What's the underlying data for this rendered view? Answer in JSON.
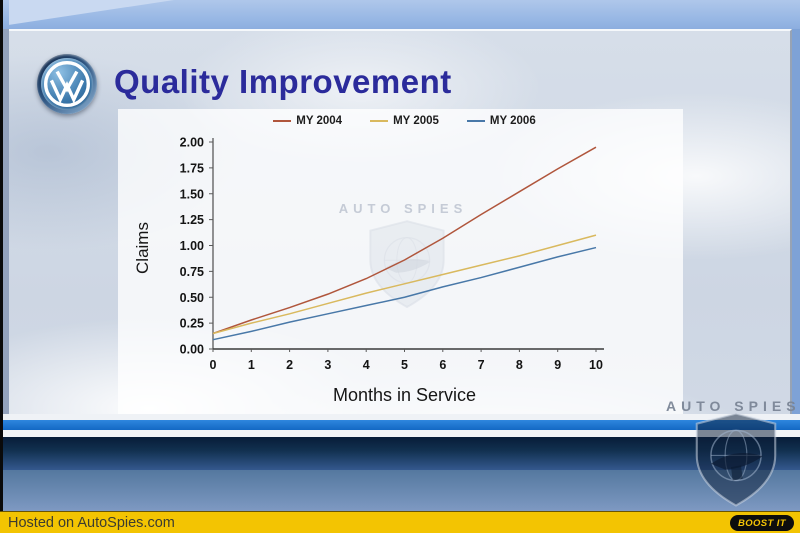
{
  "slide": {
    "title": "Quality Improvement",
    "logo": "vw-logo"
  },
  "watermark": {
    "text": "AUTO SPIES"
  },
  "footer": {
    "hosted_text": "Hosted on AutoSpies.com",
    "boost_label": "BOOST IT",
    "bar_color": "#F3C402"
  },
  "chart_data": {
    "type": "line",
    "title": "",
    "xlabel": "Months in Service",
    "ylabel": "Claims",
    "x": [
      0,
      1,
      2,
      3,
      4,
      5,
      6,
      7,
      8,
      9,
      10
    ],
    "ylim": [
      0,
      2
    ],
    "ytick_step": 0.25,
    "ytick_labels": [
      "0.00",
      "0.25",
      "0.50",
      "0.75",
      "1.00",
      "1.25",
      "1.50",
      "1.75",
      "2.00"
    ],
    "grid": false,
    "legend_position": "top",
    "series": [
      {
        "name": "MY 2004",
        "color": "#B0563C",
        "values": [
          0.15,
          0.28,
          0.4,
          0.53,
          0.68,
          0.86,
          1.07,
          1.3,
          1.52,
          1.74,
          1.95
        ]
      },
      {
        "name": "MY 2005",
        "color": "#D9B95E",
        "values": [
          0.15,
          0.25,
          0.34,
          0.44,
          0.54,
          0.63,
          0.72,
          0.81,
          0.9,
          1.0,
          1.1
        ]
      },
      {
        "name": "MY 2006",
        "color": "#4878A8",
        "values": [
          0.09,
          0.17,
          0.26,
          0.34,
          0.42,
          0.5,
          0.6,
          0.69,
          0.79,
          0.89,
          0.98
        ]
      }
    ]
  }
}
